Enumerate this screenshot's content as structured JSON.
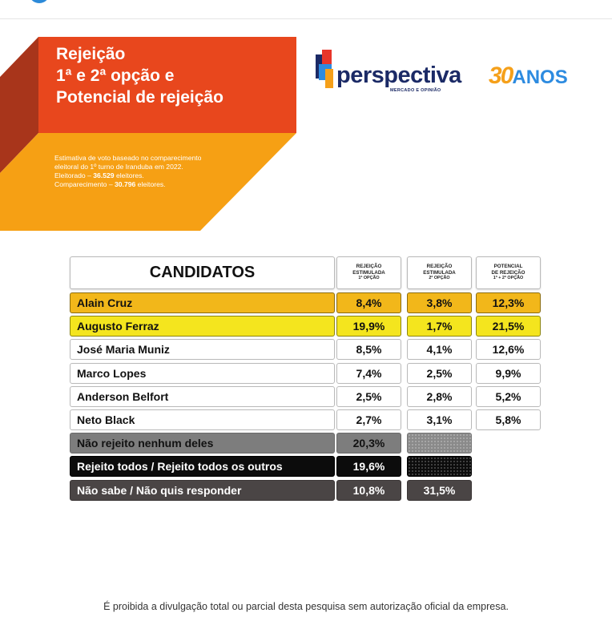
{
  "header": {
    "title_lines": [
      "Rejeição",
      "1ª e 2ª opção e",
      "Potencial de rejeição"
    ],
    "info": {
      "line1": "Estimativa de voto baseado no comparecimento",
      "line2": "eleitoral do 1º turno de Iranduba em 2022.",
      "line3_label": "Eleitorado – ",
      "line3_value": "36.529",
      "line3_suffix": " eleitores.",
      "line4_label": "Comparecimento – ",
      "line4_value": "30.796",
      "line4_suffix": " eleitores."
    }
  },
  "brand": {
    "name": "perspectiva",
    "tagline": "MERCADO E OPINIÃO",
    "anniversary_number": "30",
    "anniversary_word": "ANOS",
    "colors": {
      "navy": "#1b2a66",
      "red": "#e8352a",
      "blue": "#2d8be0",
      "orange": "#f5a01a"
    }
  },
  "colors": {
    "title_red": "#e8471d",
    "title_orange": "#f6a014",
    "title_shadow": "#a8351b",
    "row_orange": "#f2b71a",
    "row_yellow": "#f4e51e"
  },
  "chart_data": {
    "type": "table",
    "columns": [
      {
        "label": "CANDIDATOS"
      },
      {
        "line1": "REJEIÇÃO",
        "line2": "ESTIMULADA",
        "line3": "1ª OPÇÃO"
      },
      {
        "line1": "REJEIÇÃO",
        "line2": "ESTIMULADA",
        "line3": "2ª OPÇÃO"
      },
      {
        "line1": "POTENCIAL",
        "line2": "DE REJEIÇÃO",
        "line3": "1ª + 2ª OPÇÃO"
      }
    ],
    "rows": [
      {
        "name": "Alain Cruz",
        "first": "8,4%",
        "second": "3,8%",
        "potential": "12,3%",
        "style": "orange"
      },
      {
        "name": "Augusto Ferraz",
        "first": "19,9%",
        "second": "1,7%",
        "potential": "21,5%",
        "style": "yellow"
      },
      {
        "name": "José Maria Muniz",
        "first": "8,5%",
        "second": "4,1%",
        "potential": "12,6%",
        "style": "white"
      },
      {
        "name": "Marco Lopes",
        "first": "7,4%",
        "second": "2,5%",
        "potential": "9,9%",
        "style": "white"
      },
      {
        "name": "Anderson Belfort",
        "first": "2,5%",
        "second": "2,8%",
        "potential": "5,2%",
        "style": "white"
      },
      {
        "name": "Neto Black",
        "first": "2,7%",
        "second": "3,1%",
        "potential": "5,8%",
        "style": "white"
      },
      {
        "name": "Não rejeito nenhum deles",
        "first": "20,3%",
        "second": "",
        "potential": "",
        "style": "gray"
      },
      {
        "name": "Rejeito todos / Rejeito todos os outros",
        "first": "19,6%",
        "second": "",
        "potential": "",
        "style": "black"
      },
      {
        "name": "Não sabe / Não quis responder",
        "first": "10,8%",
        "second": "31,5%",
        "potential": "",
        "style": "dark"
      }
    ]
  },
  "footer": {
    "disclaimer": "É proibida a divulgação total ou parcial desta pesquisa sem autorização oficial da empresa."
  }
}
